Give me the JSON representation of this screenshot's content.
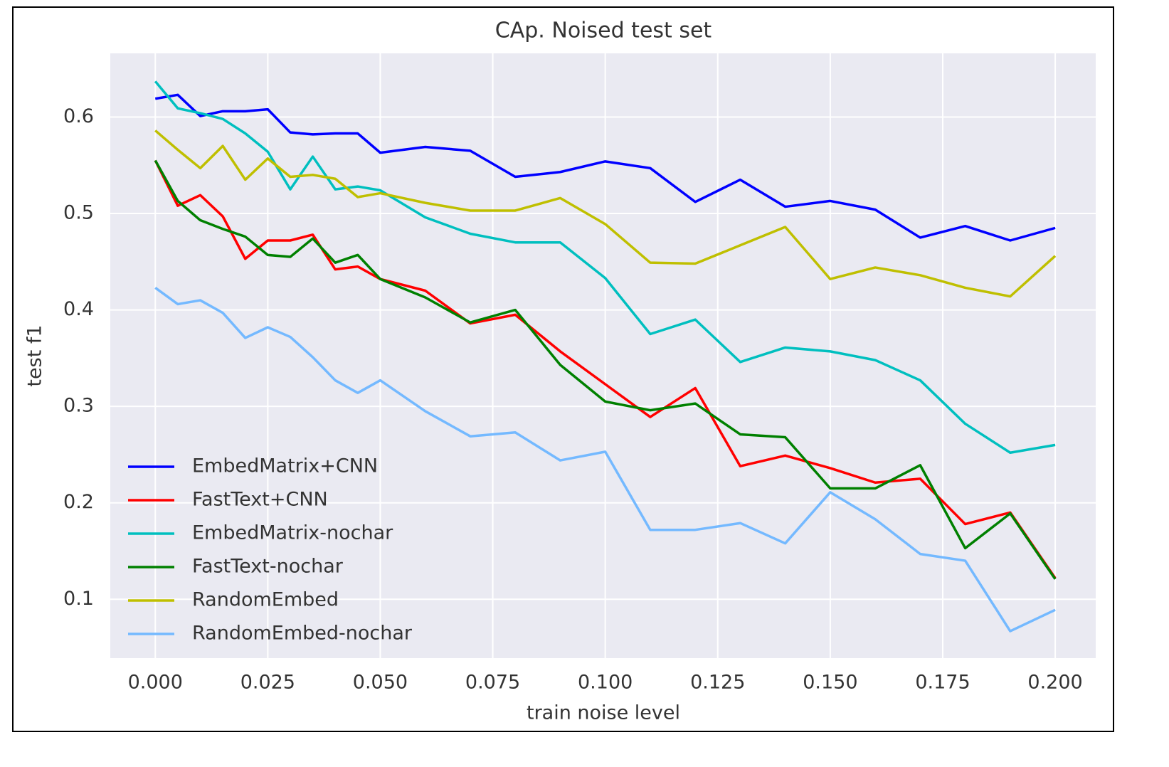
{
  "chart_data": {
    "type": "line",
    "title": "CAp. Noised test set",
    "x_label": "train noise level",
    "y_label": "test f1",
    "x": [
      0,
      0.005,
      0.01,
      0.015,
      0.02,
      0.025,
      0.03,
      0.035,
      0.04,
      0.045,
      0.05,
      0.06,
      0.07,
      0.08,
      0.09,
      0.1,
      0.11,
      0.12,
      0.13,
      0.14,
      0.15,
      0.16,
      0.17,
      0.18,
      0.19,
      0.2
    ],
    "series": [
      {
        "name": "EmbedMatrix+CNN",
        "color": "#0000ff",
        "values": [
          0.619,
          0.623,
          0.601,
          0.606,
          0.606,
          0.608,
          0.584,
          0.582,
          0.583,
          0.583,
          0.563,
          0.569,
          0.565,
          0.538,
          0.543,
          0.554,
          0.547,
          0.512,
          0.535,
          0.507,
          0.513,
          0.504,
          0.475,
          0.487,
          0.472,
          0.485
        ]
      },
      {
        "name": "FastText+CNN",
        "color": "#ff0000",
        "values": [
          0.555,
          0.508,
          0.519,
          0.497,
          0.453,
          0.472,
          0.472,
          0.478,
          0.442,
          0.445,
          0.432,
          0.42,
          0.386,
          0.395,
          0.357,
          0.323,
          0.289,
          0.319,
          0.238,
          0.249,
          0.236,
          0.221,
          0.225,
          0.178,
          0.19,
          0.122
        ]
      },
      {
        "name": "EmbedMatrix-nochar",
        "color": "#00bfbf",
        "values": [
          0.637,
          0.609,
          0.604,
          0.598,
          0.583,
          0.564,
          0.525,
          0.559,
          0.525,
          0.528,
          0.524,
          0.496,
          0.479,
          0.47,
          0.47,
          0.433,
          0.375,
          0.39,
          0.346,
          0.361,
          0.357,
          0.348,
          0.327,
          0.282,
          0.252,
          0.26
        ]
      },
      {
        "name": "FastText-nochar",
        "color": "#008000",
        "values": [
          0.555,
          0.513,
          0.493,
          0.484,
          0.476,
          0.457,
          0.455,
          0.474,
          0.449,
          0.457,
          0.432,
          0.413,
          0.387,
          0.4,
          0.343,
          0.305,
          0.296,
          0.303,
          0.271,
          0.268,
          0.215,
          0.215,
          0.239,
          0.153,
          0.189,
          0.121
        ]
      },
      {
        "name": "RandomEmbed",
        "color": "#bfbf00",
        "values": [
          0.586,
          0.566,
          0.547,
          0.57,
          0.535,
          0.557,
          0.538,
          0.54,
          0.536,
          0.517,
          0.521,
          0.511,
          0.503,
          0.503,
          0.516,
          0.489,
          0.449,
          0.448,
          0.467,
          0.486,
          0.432,
          0.444,
          0.436,
          0.423,
          0.414,
          0.456
        ]
      },
      {
        "name": "RandomEmbed-nochar",
        "color": "#74b9ff",
        "values": [
          0.423,
          0.406,
          0.41,
          0.397,
          0.371,
          0.382,
          0.372,
          0.351,
          0.327,
          0.314,
          0.327,
          0.295,
          0.269,
          0.273,
          0.244,
          0.253,
          0.172,
          0.172,
          0.179,
          0.158,
          0.211,
          0.183,
          0.147,
          0.14,
          0.067,
          0.089
        ]
      }
    ],
    "xlim": [
      -0.01,
      0.209
    ],
    "ylim": [
      0.039,
      0.666
    ],
    "xticks": [
      {
        "value": 0,
        "label": "0.000"
      },
      {
        "value": 0.025,
        "label": "0.025"
      },
      {
        "value": 0.05,
        "label": "0.050"
      },
      {
        "value": 0.075,
        "label": "0.075"
      },
      {
        "value": 0.1,
        "label": "0.100"
      },
      {
        "value": 0.125,
        "label": "0.125"
      },
      {
        "value": 0.15,
        "label": "0.150"
      },
      {
        "value": 0.175,
        "label": "0.175"
      },
      {
        "value": 0.2,
        "label": "0.200"
      }
    ],
    "yticks": [
      0.1,
      0.2,
      0.3,
      0.4,
      0.5,
      0.6
    ],
    "grid": true,
    "legend": "lower left"
  }
}
